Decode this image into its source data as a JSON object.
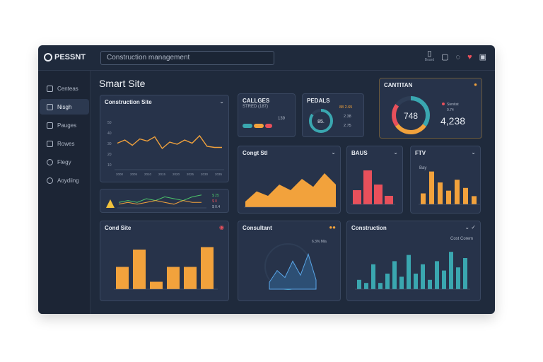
{
  "app": {
    "name": "PESSNT",
    "search_value": "Construction management"
  },
  "topbar": {
    "icon1_label": "Board"
  },
  "sidebar": {
    "items": [
      {
        "label": "Centeas",
        "icon": "grid-icon"
      },
      {
        "label": "Nisgh",
        "icon": "list-icon"
      },
      {
        "label": "Pauges",
        "icon": "doc-icon"
      },
      {
        "label": "Rowes",
        "icon": "folder-icon"
      },
      {
        "label": "Flegy",
        "icon": "gauge-icon"
      },
      {
        "label": "Aoydiing",
        "icon": "settings-icon"
      }
    ]
  },
  "page": {
    "title": "Smart Site"
  },
  "cards": {
    "line": {
      "title": "Construction Site",
      "y_ticks": [
        "50",
        "40",
        "30",
        "20",
        "10"
      ],
      "x_ticks": [
        "2000",
        "2005",
        "2010",
        "2015",
        "2020",
        "2025",
        "2030",
        "2035"
      ]
    },
    "mini_trend": {
      "legend": [
        "$ 25",
        "$ 0",
        "$ 0.4"
      ]
    },
    "callouts": {
      "title": "CALLGES",
      "subtitle": "STRED (187)",
      "value": "139"
    },
    "pedals": {
      "title": "PEDALS",
      "center": "85.",
      "l1": "88 2.65",
      "l2": "2.38",
      "l3": "2.75"
    },
    "cantitan": {
      "title": "CANTITAN",
      "center": "748",
      "big": "4,238",
      "legend": "Sienitat",
      "legend2": "0.74"
    },
    "area": {
      "title": "Congt Stl"
    },
    "bars_red": {
      "title": "BAUS"
    },
    "bars_orange": {
      "title": "FTV",
      "legend": "Bay"
    },
    "bars_site": {
      "title": "Cond Site"
    },
    "consultant": {
      "title": "Consultant",
      "legend": "6.3% Mla"
    },
    "construction": {
      "title": "Construction",
      "legend": "Cost Corem"
    }
  },
  "chart_data": [
    {
      "type": "line",
      "title": "Construction Site",
      "values": [
        25,
        28,
        23,
        29,
        27,
        31,
        20,
        26,
        24,
        28,
        25,
        32,
        22,
        21,
        21
      ],
      "ylim": [
        0,
        50
      ]
    },
    {
      "type": "line",
      "title": "mini trend",
      "series": [
        {
          "name": "green",
          "values": [
            3,
            4,
            3,
            5,
            4,
            6,
            5,
            4,
            6,
            7
          ]
        },
        {
          "name": "orange",
          "values": [
            2,
            3,
            2,
            3,
            4,
            3,
            2,
            4,
            3,
            3
          ]
        }
      ]
    },
    {
      "type": "pie",
      "title": "CALLGES",
      "values": [
        40,
        30,
        30
      ]
    },
    {
      "type": "pie",
      "title": "PEDALS",
      "values": [
        85,
        15
      ]
    },
    {
      "type": "pie",
      "title": "CANTITAN",
      "values": [
        35,
        30,
        20,
        15
      ]
    },
    {
      "type": "area",
      "title": "Congt Stl",
      "values": [
        5,
        14,
        10,
        20,
        15,
        25,
        18,
        30,
        20
      ],
      "ylim": [
        0,
        40
      ]
    },
    {
      "type": "bar",
      "title": "BAUS",
      "values": [
        5,
        12,
        7,
        3
      ],
      "ylim": [
        0,
        15
      ]
    },
    {
      "type": "bar",
      "title": "FTV",
      "values": [
        4,
        12,
        8,
        5,
        9,
        6,
        3
      ],
      "ylim": [
        0,
        15
      ]
    },
    {
      "type": "bar",
      "title": "Cond Site",
      "values": [
        9,
        16,
        3,
        9,
        9,
        17
      ],
      "ylim": [
        0,
        20
      ]
    },
    {
      "type": "area",
      "title": "Consultant",
      "values": [
        3,
        8,
        5,
        12,
        6,
        15,
        4
      ],
      "ylim": [
        0,
        20
      ]
    },
    {
      "type": "bar",
      "title": "Construction",
      "values": [
        3,
        2,
        8,
        2,
        5,
        9,
        4,
        11,
        5,
        8,
        3,
        9,
        6,
        12,
        7,
        10
      ],
      "ylim": [
        0,
        15
      ]
    }
  ]
}
